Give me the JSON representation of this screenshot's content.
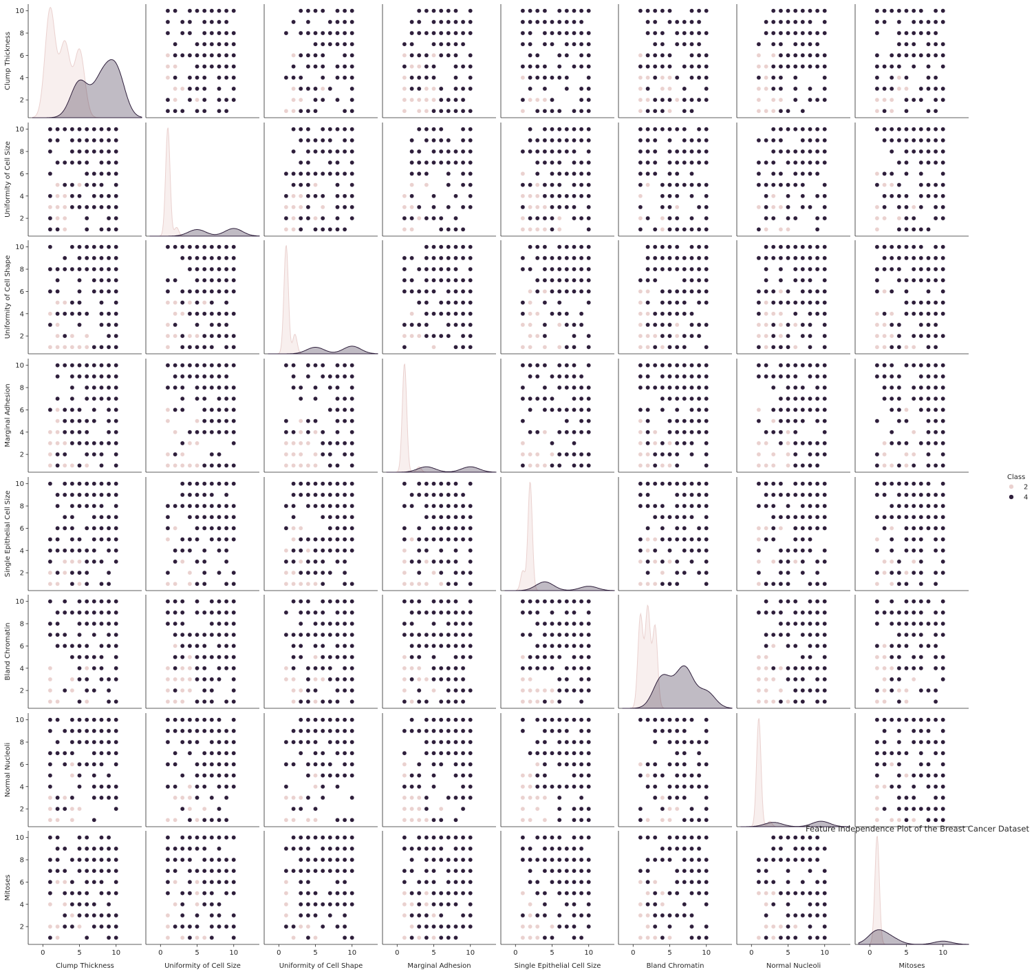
{
  "chart_data": {
    "type": "scatter",
    "kind": "pairplot",
    "title": "Feature Independence Plot of the Breast Cancer Dataset",
    "variables": [
      "Clump Thickness",
      "Uniformity of Cell Size",
      "Uniformity of Cell Shape",
      "Marginal Adhesion",
      "Single Epithelial Cell Size",
      "Bland Chromatin",
      "Normal Nucleoli",
      "Mitoses"
    ],
    "value_range": [
      1,
      10
    ],
    "axis_ticks": [
      0,
      5,
      10
    ],
    "row_ticks": [
      2,
      4,
      6,
      8,
      10
    ],
    "xlim": [
      -2,
      13.5
    ],
    "ylim": [
      0.4,
      10.6
    ],
    "diagonal": "kde",
    "legend": {
      "title": "Class",
      "placement": "center-right",
      "entries": [
        {
          "label": "2",
          "color": "#ead1cf"
        },
        {
          "label": "4",
          "color": "#2e1e3b"
        }
      ]
    },
    "series": [
      {
        "name": "2",
        "color": "#ead1cf",
        "kde_modes": [
          [
            [
              1.0,
              1.0
            ],
            [
              3.0,
              0.68
            ],
            [
              5.0,
              0.62
            ]
          ],
          [
            [
              1.0,
              1.0
            ],
            [
              2.2,
              0.08
            ]
          ],
          [
            [
              1.0,
              1.0
            ],
            [
              2.2,
              0.18
            ]
          ],
          [
            [
              1.0,
              1.0
            ],
            [
              3.0,
              0.05
            ]
          ],
          [
            [
              2.0,
              1.0
            ],
            [
              1.0,
              0.18
            ]
          ],
          [
            [
              1.0,
              0.85
            ],
            [
              2.0,
              0.92
            ],
            [
              3.0,
              0.75
            ]
          ],
          [
            [
              1.0,
              1.0
            ],
            [
              2.5,
              0.05
            ]
          ],
          [
            [
              1.0,
              1.0
            ]
          ]
        ]
      },
      {
        "name": "4",
        "color": "#2e1e3b",
        "kde_modes": [
          [
            [
              5.0,
              0.33
            ],
            [
              8.0,
              0.32
            ],
            [
              10.0,
              0.42
            ]
          ],
          [
            [
              5.0,
              0.06
            ],
            [
              10.0,
              0.07
            ]
          ],
          [
            [
              5.0,
              0.06
            ],
            [
              10.0,
              0.07
            ]
          ],
          [
            [
              4.0,
              0.05
            ],
            [
              10.0,
              0.05
            ]
          ],
          [
            [
              4.0,
              0.08
            ],
            [
              10.0,
              0.04
            ]
          ],
          [
            [
              4.0,
              0.29
            ],
            [
              7.0,
              0.37
            ],
            [
              10.0,
              0.15
            ]
          ],
          [
            [
              3.0,
              0.04
            ],
            [
              9.5,
              0.05
            ]
          ],
          [
            [
              1.0,
              0.12
            ],
            [
              3.0,
              0.05
            ],
            [
              10.0,
              0.03
            ]
          ]
        ]
      }
    ],
    "note_points": "scatter cells show integer (x, y) combinations for both classes; benign (2) concentrated at low values, malignant (4) spread across mid-to-high values"
  }
}
